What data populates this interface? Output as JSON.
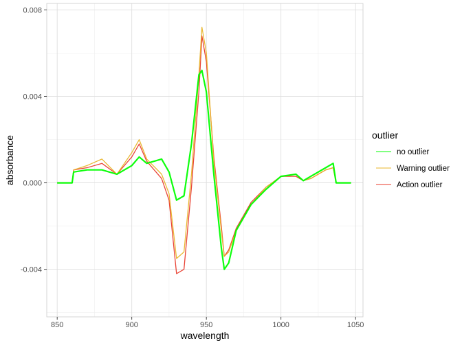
{
  "chart_data": {
    "type": "line",
    "xlabel": "wavelength",
    "ylabel": "absorbance",
    "xlim": [
      843,
      1055
    ],
    "ylim": [
      -0.0062,
      0.0083
    ],
    "x_ticks": [
      850,
      900,
      950,
      1000,
      1050
    ],
    "x_tick_labels": [
      "850",
      "900",
      "950",
      "1000",
      "1050"
    ],
    "y_ticks": [
      -0.004,
      0.0,
      0.004,
      0.008
    ],
    "y_tick_labels": [
      "-0.004",
      "0.000",
      "0.004",
      "0.008"
    ],
    "grid": true,
    "legend": {
      "title": "outlier",
      "placement": "right",
      "entries": [
        {
          "label": "no outlier",
          "color": "#00ff00"
        },
        {
          "label": "Warning outlier",
          "color": "#e8b52a"
        },
        {
          "label": "Action outlier",
          "color": "#e8392a"
        }
      ]
    },
    "x": [
      850,
      855,
      860,
      861,
      870,
      880,
      890,
      900,
      905,
      910,
      920,
      925,
      930,
      935,
      940,
      945,
      947,
      950,
      955,
      960,
      962,
      965,
      970,
      980,
      990,
      1000,
      1010,
      1015,
      1020,
      1030,
      1035,
      1037,
      1040,
      1047
    ],
    "series": [
      {
        "name": "no outlier",
        "color": "#00ff00",
        "values": [
          0,
          0,
          0,
          0.0005,
          0.0006,
          0.0006,
          0.0004,
          0.0008,
          0.0012,
          0.0009,
          0.0011,
          0.0005,
          -0.0008,
          -0.0006,
          0.0018,
          0.005,
          0.0052,
          0.0042,
          0.0004,
          -0.003,
          -0.004,
          -0.0037,
          -0.0022,
          -0.001,
          -0.0003,
          0.0003,
          0.0004,
          0.0001,
          0.0003,
          0.0007,
          0.0009,
          0,
          0,
          0
        ]
      },
      {
        "name": "Warning outlier",
        "color": "#e8b52a",
        "values": [
          0,
          0,
          0,
          0.0006,
          0.0008,
          0.0011,
          0.0004,
          0.0014,
          0.002,
          0.0011,
          0.0004,
          -0.0005,
          -0.0035,
          -0.0032,
          0.0004,
          0.005,
          0.0072,
          0.006,
          0.001,
          -0.0022,
          -0.0034,
          -0.0032,
          -0.0022,
          -0.001,
          -0.0002,
          0.0003,
          0.0004,
          0.0001,
          0.0002,
          0.0006,
          0.0007,
          0,
          0,
          0
        ]
      },
      {
        "name": "Action outlier",
        "color": "#e8392a",
        "values": [
          0,
          0,
          0,
          0.0006,
          0.0007,
          0.0009,
          0.0004,
          0.0012,
          0.0018,
          0.001,
          0.0002,
          -0.0008,
          -0.0042,
          -0.004,
          -0.0002,
          0.0042,
          0.0068,
          0.0056,
          0.0012,
          -0.002,
          -0.0034,
          -0.0031,
          -0.0021,
          -0.0009,
          -0.0002,
          0.0003,
          0.0003,
          0.0001,
          0.0002,
          0.0006,
          0.0007,
          0,
          0,
          0
        ]
      }
    ]
  }
}
